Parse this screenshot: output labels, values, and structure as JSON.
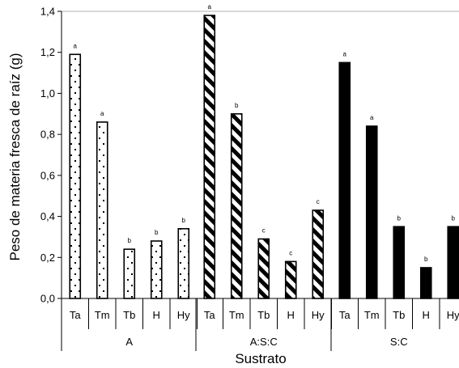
{
  "chart_data": {
    "type": "bar",
    "ylabel": "Peso de materia fresca de raíz (g)",
    "xlabel": "Sustrato",
    "ylim": [
      0,
      1.4
    ],
    "yticks": [
      "0,0",
      "0,2",
      "0,4",
      "0,6",
      "0,8",
      "1,0",
      "1,2",
      "1,4"
    ],
    "grid": "top line only",
    "groups": [
      {
        "name": "A",
        "pattern": "dotted",
        "bars": [
          {
            "category": "Ta",
            "value": 1.19,
            "letter": "a"
          },
          {
            "category": "Tm",
            "value": 0.86,
            "letter": "a"
          },
          {
            "category": "Tb",
            "value": 0.24,
            "letter": "b"
          },
          {
            "category": "H",
            "value": 0.28,
            "letter": "b"
          },
          {
            "category": "Hy",
            "value": 0.34,
            "letter": "b"
          }
        ]
      },
      {
        "name": "A:S:C",
        "pattern": "diagonal-stripes",
        "bars": [
          {
            "category": "Ta",
            "value": 1.38,
            "letter": "a"
          },
          {
            "category": "Tm",
            "value": 0.9,
            "letter": "b"
          },
          {
            "category": "Tb",
            "value": 0.29,
            "letter": "c"
          },
          {
            "category": "H",
            "value": 0.18,
            "letter": "c"
          },
          {
            "category": "Hy",
            "value": 0.43,
            "letter": "c"
          }
        ]
      },
      {
        "name": "S:C",
        "pattern": "solid-black",
        "bars": [
          {
            "category": "Ta",
            "value": 1.15,
            "letter": "a"
          },
          {
            "category": "Tm",
            "value": 0.84,
            "letter": "a"
          },
          {
            "category": "Tb",
            "value": 0.35,
            "letter": "b"
          },
          {
            "category": "H",
            "value": 0.15,
            "letter": "b"
          },
          {
            "category": "Hy",
            "value": 0.35,
            "letter": "b"
          }
        ]
      }
    ]
  }
}
